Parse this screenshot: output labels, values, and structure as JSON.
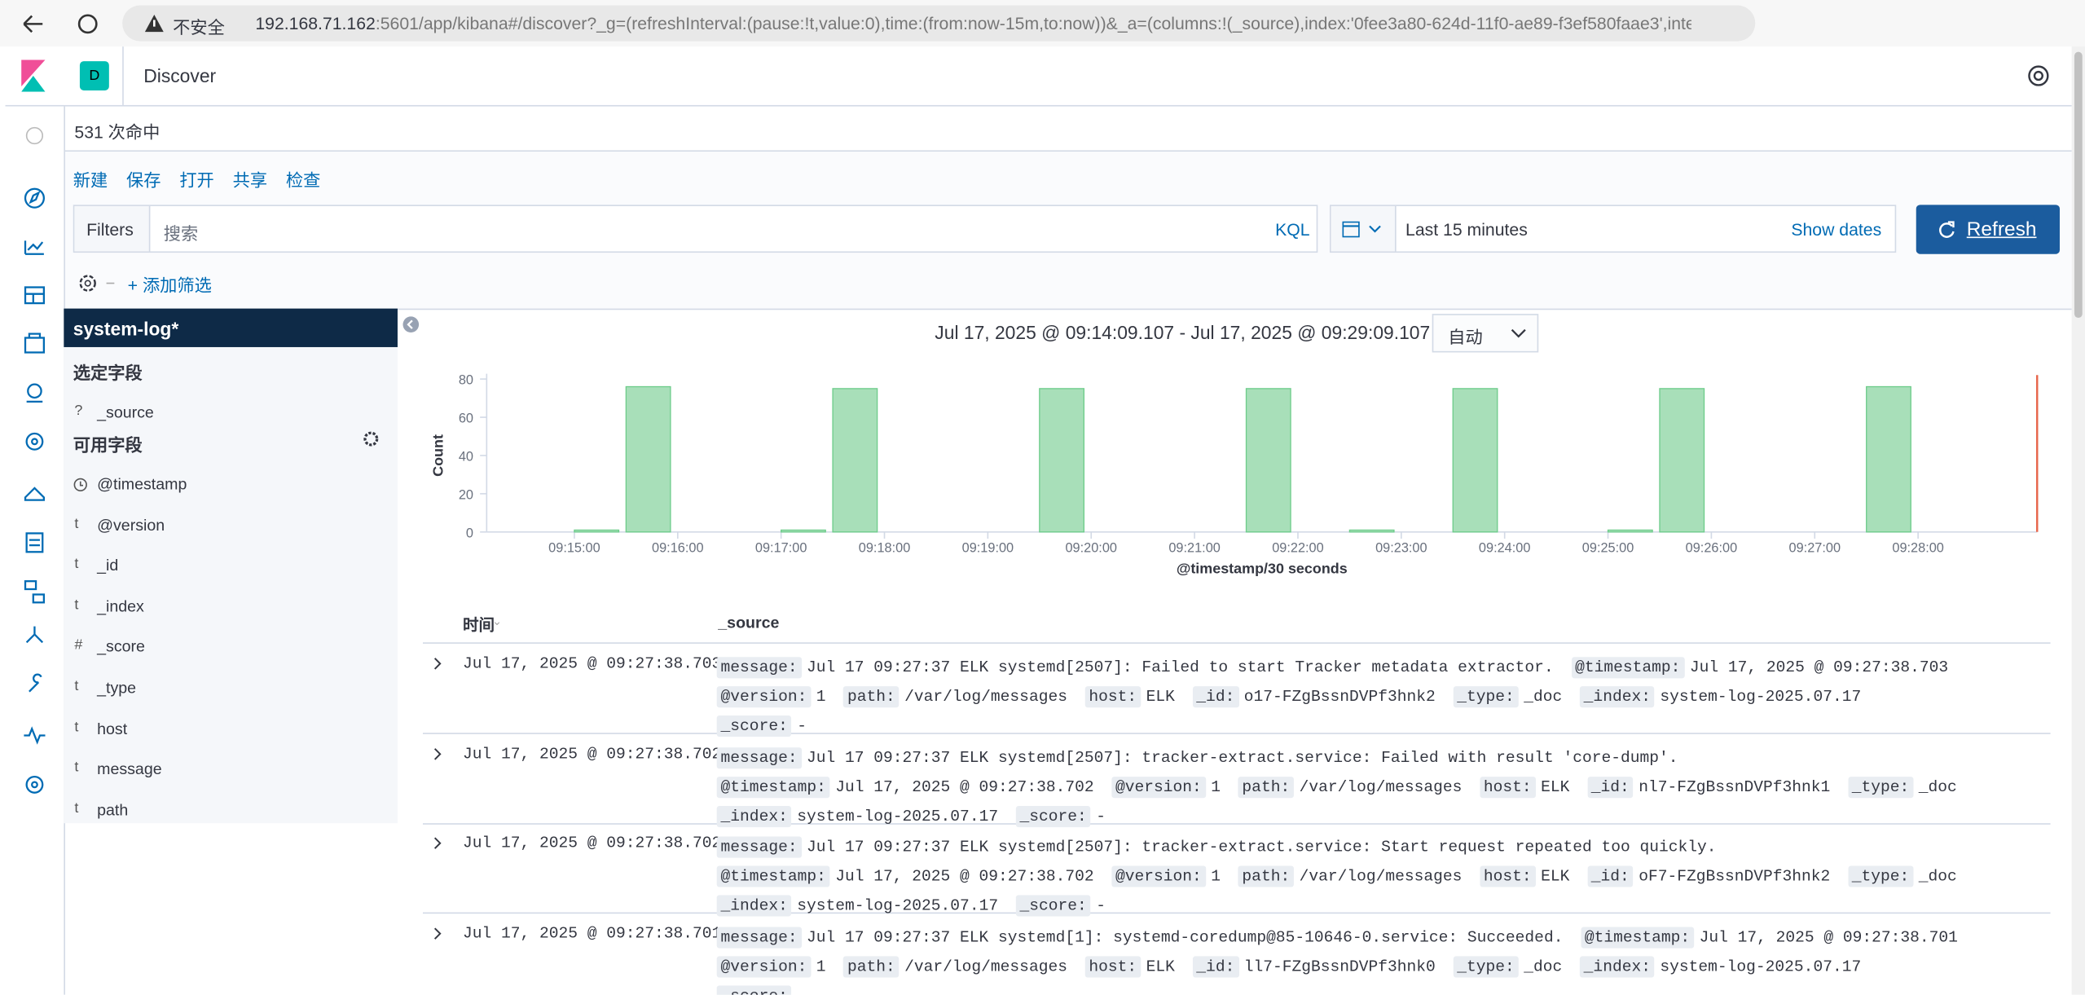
{
  "browser": {
    "security": "不安全",
    "url_host": "192.168.71.162",
    "url_rest": ":5601/app/kibana#/discover?_g=(refreshInterval:(pause:!t,value:0),time:(from:now-15m,to:now))&_a=(columns:!(_source),index:'0fee3a80-624d-11f0-ae89-f3ef580faae3',interval:..."
  },
  "app": {
    "space": "D",
    "title": "Discover"
  },
  "hits": "531 次命中",
  "toolbar": [
    "新建",
    "保存",
    "打开",
    "共享",
    "检查"
  ],
  "query": {
    "filters": "Filters",
    "placeholder": "搜索",
    "language": "KQL",
    "time": "Last 15 minutes",
    "show_dates": "Show dates",
    "refresh": "Refresh",
    "add_filter": "+ 添加筛选"
  },
  "sidebar": {
    "index": "system-log*",
    "selected_title": "选定字段",
    "selected": [
      {
        "type": "?",
        "name": "_source"
      }
    ],
    "available_title": "可用字段",
    "available": [
      {
        "name": "@timestamp"
      },
      {
        "type": "t",
        "name": "@version"
      },
      {
        "type": "t",
        "name": "_id"
      },
      {
        "type": "t",
        "name": "_index"
      },
      {
        "type": "#",
        "name": "_score"
      },
      {
        "type": "t",
        "name": "_type"
      },
      {
        "type": "t",
        "name": "host"
      },
      {
        "type": "t",
        "name": "message"
      },
      {
        "type": "t",
        "name": "path"
      }
    ]
  },
  "chart_data": {
    "type": "bar",
    "title": "Jul 17, 2025 @ 09:14:09.107 - Jul 17, 2025 @ 09:29:09.107 —",
    "interval": "自动",
    "y_label": "Count",
    "x_label": "@timestamp/30 seconds",
    "color": "#a8dfb9",
    "x": [
      "09:15:00",
      "09:15:30",
      "09:17:00",
      "09:17:30",
      "09:19:30",
      "09:21:30",
      "09:22:30",
      "09:23:30",
      "09:25:00",
      "09:25:30",
      "09:27:30"
    ],
    "values": [
      1,
      76,
      1,
      75,
      75,
      75,
      1,
      75,
      1,
      75,
      76
    ],
    "xlim": [
      "09:14:09.107",
      "09:29:09.107"
    ],
    "xticks": [
      "09:15:00",
      "09:16:00",
      "09:17:00",
      "09:18:00",
      "09:19:00",
      "09:20:00",
      "09:21:00",
      "09:22:00",
      "09:23:00",
      "09:24:00",
      "09:25:00",
      "09:26:00",
      "09:27:00",
      "09:28:00"
    ],
    "ylim": [
      0,
      80
    ],
    "yticks": [
      0,
      20,
      40,
      60,
      80
    ]
  },
  "table": {
    "columns": [
      "时间",
      "_source"
    ],
    "rows": [
      {
        "time": "Jul 17, 2025 @ 09:27:38.703",
        "fields": [
          [
            "message:",
            "Jul 17 09:27:37 ELK systemd[2507]: Failed to start Tracker metadata extractor."
          ],
          [
            "@timestamp:",
            "Jul 17, 2025 @ 09:27:38.703"
          ],
          [
            "@version:",
            "1"
          ],
          [
            "path:",
            "/var/log/messages"
          ],
          [
            "host:",
            "ELK"
          ],
          [
            "_id:",
            "o17-FZgBssnDVPf3hnk2"
          ],
          [
            "_type:",
            "_doc"
          ],
          [
            "_index:",
            "system-log-2025.07.17"
          ],
          [
            "_score:",
            "-"
          ]
        ]
      },
      {
        "time": "Jul 17, 2025 @ 09:27:38.702",
        "fields": [
          [
            "message:",
            "Jul 17 09:27:37 ELK systemd[2507]: tracker-extract.service: Failed with result 'core-dump'."
          ],
          [
            "@timestamp:",
            "Jul 17, 2025 @ 09:27:38.702"
          ],
          [
            "@version:",
            "1"
          ],
          [
            "path:",
            "/var/log/messages"
          ],
          [
            "host:",
            "ELK"
          ],
          [
            "_id:",
            "nl7-FZgBssnDVPf3hnk1"
          ],
          [
            "_type:",
            "_doc"
          ],
          [
            "_index:",
            "system-log-2025.07.17"
          ],
          [
            "_score:",
            "-"
          ]
        ]
      },
      {
        "time": "Jul 17, 2025 @ 09:27:38.702",
        "fields": [
          [
            "message:",
            "Jul 17 09:27:37 ELK systemd[2507]: tracker-extract.service: Start request repeated too quickly."
          ],
          [
            "@timestamp:",
            "Jul 17, 2025 @ 09:27:38.702"
          ],
          [
            "@version:",
            "1"
          ],
          [
            "path:",
            "/var/log/messages"
          ],
          [
            "host:",
            "ELK"
          ],
          [
            "_id:",
            "oF7-FZgBssnDVPf3hnk2"
          ],
          [
            "_type:",
            "_doc"
          ],
          [
            "_index:",
            "system-log-2025.07.17"
          ],
          [
            "_score:",
            "-"
          ]
        ]
      },
      {
        "time": "Jul 17, 2025 @ 09:27:38.701",
        "fields": [
          [
            "message:",
            "Jul 17 09:27:37 ELK systemd[1]: systemd-coredump@85-10646-0.service: Succeeded."
          ],
          [
            "@timestamp:",
            "Jul 17, 2025 @ 09:27:38.701"
          ],
          [
            "@version:",
            "1"
          ],
          [
            "path:",
            "/var/log/messages"
          ],
          [
            "host:",
            "ELK"
          ],
          [
            "_id:",
            "ll7-FZgBssnDVPf3hnk0"
          ],
          [
            "_type:",
            "_doc"
          ],
          [
            "_index:",
            "system-log-2025.07.17"
          ],
          [
            "_score:",
            "-"
          ]
        ]
      }
    ]
  }
}
